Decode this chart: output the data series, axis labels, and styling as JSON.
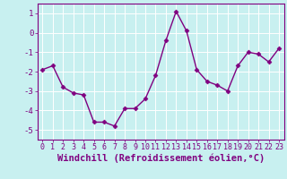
{
  "x": [
    0,
    1,
    2,
    3,
    4,
    5,
    6,
    7,
    8,
    9,
    10,
    11,
    12,
    13,
    14,
    15,
    16,
    17,
    18,
    19,
    20,
    21,
    22,
    23
  ],
  "y": [
    -1.9,
    -1.7,
    -2.8,
    -3.1,
    -3.2,
    -4.6,
    -4.6,
    -4.8,
    -3.9,
    -3.9,
    -3.4,
    -2.2,
    -0.4,
    1.1,
    0.1,
    -1.9,
    -2.5,
    -2.7,
    -3.0,
    -1.7,
    -1.0,
    -1.1,
    -1.5,
    -0.8
  ],
  "line_color": "#800080",
  "marker": "D",
  "markersize": 2.5,
  "linewidth": 1.0,
  "bg_color": "#c8f0f0",
  "grid_color": "#ffffff",
  "xlabel": "Windchill (Refroidissement éolien,°C)",
  "xlabel_color": "#800080",
  "tick_color": "#800080",
  "spine_color": "#800080",
  "axis_label_fontsize": 7.5,
  "tick_fontsize": 6.0,
  "ylim": [
    -5.5,
    1.5
  ],
  "yticks": [
    -5,
    -4,
    -3,
    -2,
    -1,
    0,
    1
  ],
  "xlim": [
    -0.5,
    23.5
  ],
  "xticks": [
    0,
    1,
    2,
    3,
    4,
    5,
    6,
    7,
    8,
    9,
    10,
    11,
    12,
    13,
    14,
    15,
    16,
    17,
    18,
    19,
    20,
    21,
    22,
    23
  ]
}
